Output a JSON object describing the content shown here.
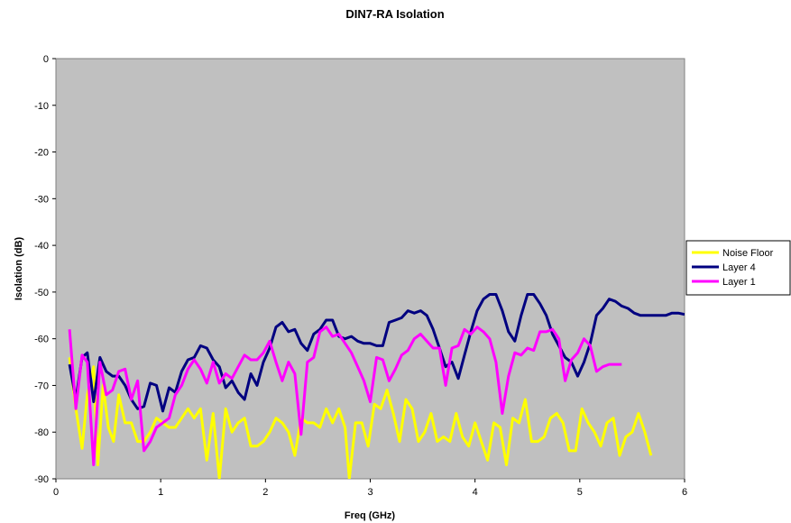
{
  "chart_data": {
    "type": "line",
    "title": "DIN7-RA Isolation",
    "xlabel": "Freq (GHz)",
    "ylabel": "Isolation (dB)",
    "xlim": [
      0,
      6
    ],
    "ylim": [
      -90,
      0
    ],
    "x_ticks": [
      "0",
      "1",
      "2",
      "3",
      "4",
      "5",
      "6"
    ],
    "y_ticks": [
      "0",
      "-10",
      "-20",
      "-30",
      "-40",
      "-50",
      "-60",
      "-70",
      "-80",
      "-90"
    ],
    "grid": false,
    "plot_background": "#c0c0c0",
    "legend_position": "right",
    "series": [
      {
        "name": "Noise Floor",
        "color": "#ffff00",
        "points": [
          [
            0.13,
            -64
          ],
          [
            0.19,
            -75
          ],
          [
            0.25,
            -83.5
          ],
          [
            0.3,
            -72
          ],
          [
            0.36,
            -66
          ],
          [
            0.4,
            -87
          ],
          [
            0.45,
            -70
          ],
          [
            0.5,
            -79
          ],
          [
            0.55,
            -82
          ],
          [
            0.6,
            -72
          ],
          [
            0.66,
            -78
          ],
          [
            0.72,
            -78
          ],
          [
            0.78,
            -82
          ],
          [
            0.84,
            -82
          ],
          [
            0.9,
            -80
          ],
          [
            0.96,
            -77
          ],
          [
            1.02,
            -78
          ],
          [
            1.08,
            -79
          ],
          [
            1.14,
            -79
          ],
          [
            1.2,
            -77
          ],
          [
            1.26,
            -75
          ],
          [
            1.32,
            -77
          ],
          [
            1.38,
            -75
          ],
          [
            1.44,
            -86
          ],
          [
            1.5,
            -76
          ],
          [
            1.56,
            -90
          ],
          [
            1.62,
            -75
          ],
          [
            1.68,
            -80
          ],
          [
            1.74,
            -78
          ],
          [
            1.8,
            -77
          ],
          [
            1.86,
            -83
          ],
          [
            1.92,
            -83
          ],
          [
            1.98,
            -82
          ],
          [
            2.04,
            -80
          ],
          [
            2.1,
            -77
          ],
          [
            2.16,
            -78
          ],
          [
            2.22,
            -80
          ],
          [
            2.28,
            -85
          ],
          [
            2.34,
            -77
          ],
          [
            2.4,
            -78
          ],
          [
            2.46,
            -78
          ],
          [
            2.52,
            -79
          ],
          [
            2.58,
            -75
          ],
          [
            2.64,
            -78
          ],
          [
            2.7,
            -75
          ],
          [
            2.76,
            -79
          ],
          [
            2.8,
            -90
          ],
          [
            2.86,
            -78
          ],
          [
            2.92,
            -78
          ],
          [
            2.98,
            -83
          ],
          [
            3.04,
            -74
          ],
          [
            3.1,
            -75
          ],
          [
            3.16,
            -71
          ],
          [
            3.22,
            -76
          ],
          [
            3.28,
            -82
          ],
          [
            3.34,
            -73
          ],
          [
            3.4,
            -75
          ],
          [
            3.46,
            -82
          ],
          [
            3.52,
            -80
          ],
          [
            3.58,
            -76
          ],
          [
            3.64,
            -82
          ],
          [
            3.7,
            -81
          ],
          [
            3.76,
            -82
          ],
          [
            3.82,
            -76
          ],
          [
            3.88,
            -81
          ],
          [
            3.94,
            -83
          ],
          [
            4.0,
            -78
          ],
          [
            4.06,
            -82
          ],
          [
            4.12,
            -86
          ],
          [
            4.18,
            -78
          ],
          [
            4.24,
            -79
          ],
          [
            4.3,
            -87
          ],
          [
            4.36,
            -77
          ],
          [
            4.42,
            -78
          ],
          [
            4.48,
            -73
          ],
          [
            4.54,
            -82
          ],
          [
            4.6,
            -82
          ],
          [
            4.66,
            -81
          ],
          [
            4.72,
            -77
          ],
          [
            4.78,
            -76
          ],
          [
            4.84,
            -78
          ],
          [
            4.9,
            -84
          ],
          [
            4.96,
            -84
          ],
          [
            5.02,
            -75
          ],
          [
            5.08,
            -78
          ],
          [
            5.14,
            -80
          ],
          [
            5.2,
            -83
          ],
          [
            5.26,
            -78
          ],
          [
            5.32,
            -77
          ],
          [
            5.38,
            -85
          ],
          [
            5.44,
            -81
          ],
          [
            5.5,
            -80
          ],
          [
            5.56,
            -76
          ],
          [
            5.62,
            -80
          ],
          [
            5.68,
            -85
          ]
        ]
      },
      {
        "name": "Layer 4",
        "color": "#000080",
        "points": [
          [
            0.13,
            -65.5
          ],
          [
            0.19,
            -73
          ],
          [
            0.25,
            -64
          ],
          [
            0.3,
            -63
          ],
          [
            0.36,
            -73.5
          ],
          [
            0.42,
            -64
          ],
          [
            0.48,
            -67
          ],
          [
            0.54,
            -68
          ],
          [
            0.6,
            -68
          ],
          [
            0.66,
            -70
          ],
          [
            0.72,
            -73
          ],
          [
            0.78,
            -75
          ],
          [
            0.84,
            -74.5
          ],
          [
            0.9,
            -69.5
          ],
          [
            0.96,
            -70
          ],
          [
            1.02,
            -75.5
          ],
          [
            1.08,
            -70.5
          ],
          [
            1.14,
            -71.5
          ],
          [
            1.2,
            -67
          ],
          [
            1.26,
            -64.5
          ],
          [
            1.32,
            -64
          ],
          [
            1.38,
            -61.5
          ],
          [
            1.44,
            -62
          ],
          [
            1.5,
            -64.5
          ],
          [
            1.56,
            -66
          ],
          [
            1.62,
            -70.5
          ],
          [
            1.68,
            -69
          ],
          [
            1.74,
            -71.5
          ],
          [
            1.8,
            -73
          ],
          [
            1.86,
            -67.5
          ],
          [
            1.92,
            -70
          ],
          [
            1.98,
            -65
          ],
          [
            2.04,
            -62
          ],
          [
            2.1,
            -57.5
          ],
          [
            2.16,
            -56.5
          ],
          [
            2.22,
            -58.5
          ],
          [
            2.28,
            -58
          ],
          [
            2.34,
            -61
          ],
          [
            2.4,
            -62.5
          ],
          [
            2.46,
            -59
          ],
          [
            2.52,
            -58
          ],
          [
            2.58,
            -56
          ],
          [
            2.64,
            -56
          ],
          [
            2.7,
            -59.5
          ],
          [
            2.76,
            -60
          ],
          [
            2.82,
            -59.5
          ],
          [
            2.88,
            -60.5
          ],
          [
            2.94,
            -61
          ],
          [
            3.0,
            -61
          ],
          [
            3.06,
            -61.5
          ],
          [
            3.12,
            -61.5
          ],
          [
            3.18,
            -56.5
          ],
          [
            3.24,
            -56
          ],
          [
            3.3,
            -55.5
          ],
          [
            3.36,
            -54
          ],
          [
            3.42,
            -54.5
          ],
          [
            3.48,
            -54
          ],
          [
            3.54,
            -55
          ],
          [
            3.6,
            -58
          ],
          [
            3.66,
            -62
          ],
          [
            3.72,
            -66
          ],
          [
            3.78,
            -65
          ],
          [
            3.84,
            -68.5
          ],
          [
            3.9,
            -63.5
          ],
          [
            3.96,
            -58.5
          ],
          [
            4.02,
            -54
          ],
          [
            4.08,
            -51.5
          ],
          [
            4.14,
            -50.5
          ],
          [
            4.2,
            -50.5
          ],
          [
            4.26,
            -54
          ],
          [
            4.32,
            -58.5
          ],
          [
            4.38,
            -60.5
          ],
          [
            4.44,
            -55
          ],
          [
            4.5,
            -50.5
          ],
          [
            4.56,
            -50.5
          ],
          [
            4.62,
            -52.5
          ],
          [
            4.68,
            -55
          ],
          [
            4.74,
            -59
          ],
          [
            4.8,
            -61.5
          ],
          [
            4.86,
            -64
          ],
          [
            4.92,
            -65
          ],
          [
            4.98,
            -68
          ],
          [
            5.04,
            -65
          ],
          [
            5.1,
            -61
          ],
          [
            5.16,
            -55
          ],
          [
            5.22,
            -53.5
          ],
          [
            5.28,
            -51.5
          ],
          [
            5.34,
            -52
          ],
          [
            5.4,
            -53
          ],
          [
            5.46,
            -53.5
          ],
          [
            5.52,
            -54.5
          ],
          [
            5.58,
            -55
          ],
          [
            5.64,
            -55
          ],
          [
            5.7,
            -55
          ],
          [
            5.76,
            -55
          ],
          [
            5.82,
            -55
          ],
          [
            5.88,
            -54.5
          ],
          [
            5.94,
            -54.5
          ],
          [
            6.0,
            -54.8
          ]
        ]
      },
      {
        "name": "Layer 1",
        "color": "#ff00ff",
        "points": [
          [
            0.13,
            -58
          ],
          [
            0.19,
            -75
          ],
          [
            0.25,
            -63.5
          ],
          [
            0.3,
            -65
          ],
          [
            0.36,
            -87
          ],
          [
            0.42,
            -65
          ],
          [
            0.48,
            -72
          ],
          [
            0.54,
            -71
          ],
          [
            0.6,
            -67
          ],
          [
            0.66,
            -66.5
          ],
          [
            0.72,
            -73
          ],
          [
            0.78,
            -69
          ],
          [
            0.84,
            -84
          ],
          [
            0.9,
            -82
          ],
          [
            0.96,
            -79
          ],
          [
            1.02,
            -78
          ],
          [
            1.08,
            -77
          ],
          [
            1.14,
            -72
          ],
          [
            1.2,
            -70
          ],
          [
            1.26,
            -66.5
          ],
          [
            1.32,
            -64.5
          ],
          [
            1.38,
            -66.5
          ],
          [
            1.44,
            -69.5
          ],
          [
            1.5,
            -65
          ],
          [
            1.56,
            -69.5
          ],
          [
            1.62,
            -67.5
          ],
          [
            1.68,
            -68.5
          ],
          [
            1.74,
            -66
          ],
          [
            1.8,
            -63.5
          ],
          [
            1.86,
            -64.5
          ],
          [
            1.92,
            -64.5
          ],
          [
            1.98,
            -63
          ],
          [
            2.04,
            -60.5
          ],
          [
            2.1,
            -65
          ],
          [
            2.16,
            -69
          ],
          [
            2.22,
            -65
          ],
          [
            2.28,
            -67.5
          ],
          [
            2.34,
            -80.5
          ],
          [
            2.4,
            -65
          ],
          [
            2.46,
            -64
          ],
          [
            2.52,
            -58.5
          ],
          [
            2.58,
            -57.5
          ],
          [
            2.64,
            -59.5
          ],
          [
            2.7,
            -59
          ],
          [
            2.76,
            -61
          ],
          [
            2.82,
            -63
          ],
          [
            2.88,
            -66
          ],
          [
            2.94,
            -69
          ],
          [
            3.0,
            -73.5
          ],
          [
            3.06,
            -64
          ],
          [
            3.12,
            -64.5
          ],
          [
            3.18,
            -69
          ],
          [
            3.24,
            -66.5
          ],
          [
            3.3,
            -63.5
          ],
          [
            3.36,
            -62.5
          ],
          [
            3.42,
            -60
          ],
          [
            3.48,
            -59
          ],
          [
            3.54,
            -60.5
          ],
          [
            3.6,
            -62
          ],
          [
            3.66,
            -62
          ],
          [
            3.72,
            -70
          ],
          [
            3.78,
            -62
          ],
          [
            3.84,
            -61.5
          ],
          [
            3.9,
            -58
          ],
          [
            3.96,
            -59
          ],
          [
            4.02,
            -57.5
          ],
          [
            4.08,
            -58.5
          ],
          [
            4.14,
            -60
          ],
          [
            4.2,
            -65
          ],
          [
            4.26,
            -76
          ],
          [
            4.32,
            -68
          ],
          [
            4.38,
            -63
          ],
          [
            4.44,
            -63.5
          ],
          [
            4.5,
            -62
          ],
          [
            4.56,
            -62.5
          ],
          [
            4.62,
            -58.5
          ],
          [
            4.68,
            -58.5
          ],
          [
            4.74,
            -58
          ],
          [
            4.8,
            -60
          ],
          [
            4.86,
            -69
          ],
          [
            4.92,
            -64.5
          ],
          [
            4.98,
            -63
          ],
          [
            5.04,
            -60
          ],
          [
            5.1,
            -61.5
          ],
          [
            5.16,
            -67
          ],
          [
            5.22,
            -66
          ],
          [
            5.28,
            -65.5
          ],
          [
            5.34,
            -65.5
          ],
          [
            5.4,
            -65.5
          ]
        ]
      }
    ]
  }
}
